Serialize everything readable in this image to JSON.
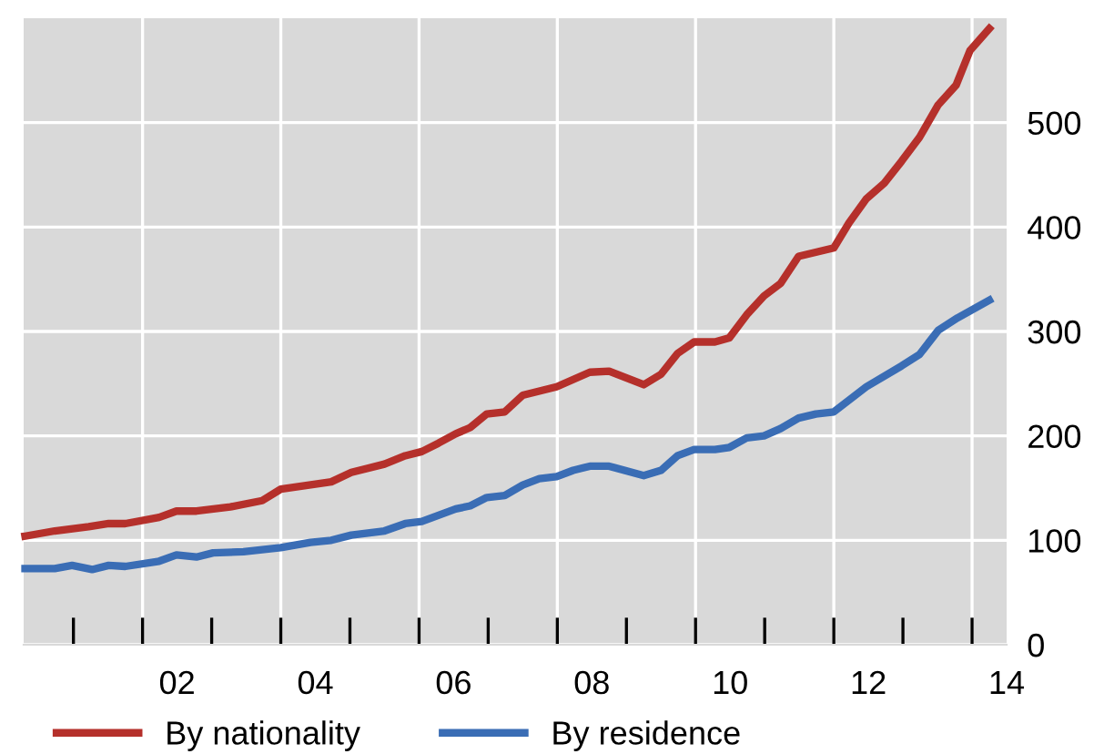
{
  "chart_data": {
    "type": "line",
    "series": [
      {
        "name": "By nationality",
        "color": "#b5302b",
        "x": [
          -0.2,
          0.23,
          0.72,
          1.01,
          1.25,
          1.74,
          1.99,
          2.28,
          2.77,
          3.23,
          3.5,
          4.23,
          4.52,
          5.0,
          5.3,
          5.54,
          5.78,
          6.03,
          6.24,
          6.48,
          6.74,
          7.0,
          7.49,
          7.73,
          7.97,
          8.25,
          8.75,
          9.0,
          9.24,
          9.48,
          9.78,
          9.99,
          10.24,
          10.49,
          10.73,
          10.99,
          11.5,
          11.72,
          11.97,
          12.23,
          12.48,
          12.74,
          13.01,
          13.27,
          13.47,
          13.75
        ],
        "values": [
          104,
          109,
          113,
          116,
          116,
          122,
          128,
          128,
          132,
          138,
          149,
          156,
          165,
          173,
          181,
          185,
          193,
          202,
          208,
          221,
          223,
          239,
          247,
          254,
          261,
          262,
          249,
          259,
          279,
          290,
          290,
          294,
          316,
          334,
          346,
          372,
          380,
          404,
          427,
          442,
          463,
          486,
          517,
          536,
          569,
          590
        ]
      },
      {
        "name": "By residence",
        "color": "#3a6db5",
        "x": [
          -0.2,
          0.23,
          0.48,
          0.77,
          1.01,
          1.25,
          1.74,
          1.99,
          2.28,
          2.52,
          2.96,
          3.5,
          3.93,
          4.23,
          4.52,
          5.0,
          5.3,
          5.54,
          6.03,
          6.24,
          6.48,
          6.74,
          7.0,
          7.24,
          7.49,
          7.73,
          7.97,
          8.25,
          8.75,
          9.0,
          9.24,
          9.48,
          9.78,
          9.99,
          10.24,
          10.49,
          10.73,
          10.99,
          11.24,
          11.5,
          11.97,
          12.48,
          12.74,
          13.01,
          13.29,
          13.75
        ],
        "values": [
          73,
          73,
          76,
          72,
          76,
          75,
          80,
          86,
          84,
          88,
          89,
          93,
          98,
          100,
          105,
          109,
          116,
          118,
          130,
          133,
          141,
          143,
          153,
          159,
          161,
          167,
          171,
          171,
          162,
          167,
          181,
          187,
          187,
          189,
          198,
          200,
          207,
          217,
          221,
          223,
          247,
          267,
          278,
          301,
          313,
          330
        ]
      }
    ],
    "xlim": [
      -0.22,
      14.0
    ],
    "xticks": [
      {
        "value": 0.5,
        "label": null
      },
      {
        "value": 1.5,
        "label": null
      },
      {
        "value": 2,
        "label": "02"
      },
      {
        "value": 2.5,
        "label": null
      },
      {
        "value": 3.5,
        "label": null
      },
      {
        "value": 4,
        "label": "04"
      },
      {
        "value": 4.5,
        "label": null
      },
      {
        "value": 5.5,
        "label": null
      },
      {
        "value": 6,
        "label": "06"
      },
      {
        "value": 6.5,
        "label": null
      },
      {
        "value": 7.5,
        "label": null
      },
      {
        "value": 8,
        "label": "08"
      },
      {
        "value": 8.5,
        "label": null
      },
      {
        "value": 9.5,
        "label": null
      },
      {
        "value": 10,
        "label": "10"
      },
      {
        "value": 10.5,
        "label": null
      },
      {
        "value": 11.5,
        "label": null
      },
      {
        "value": 12,
        "label": "12"
      },
      {
        "value": 12.5,
        "label": null
      },
      {
        "value": 13.5,
        "label": null
      },
      {
        "value": 14,
        "label": "14"
      }
    ],
    "ylim": [
      0,
      600
    ],
    "yticks": [
      0,
      100,
      200,
      300,
      400,
      500
    ],
    "grid": true,
    "legend": "bottom",
    "marker": "none",
    "line_style": "solid"
  }
}
